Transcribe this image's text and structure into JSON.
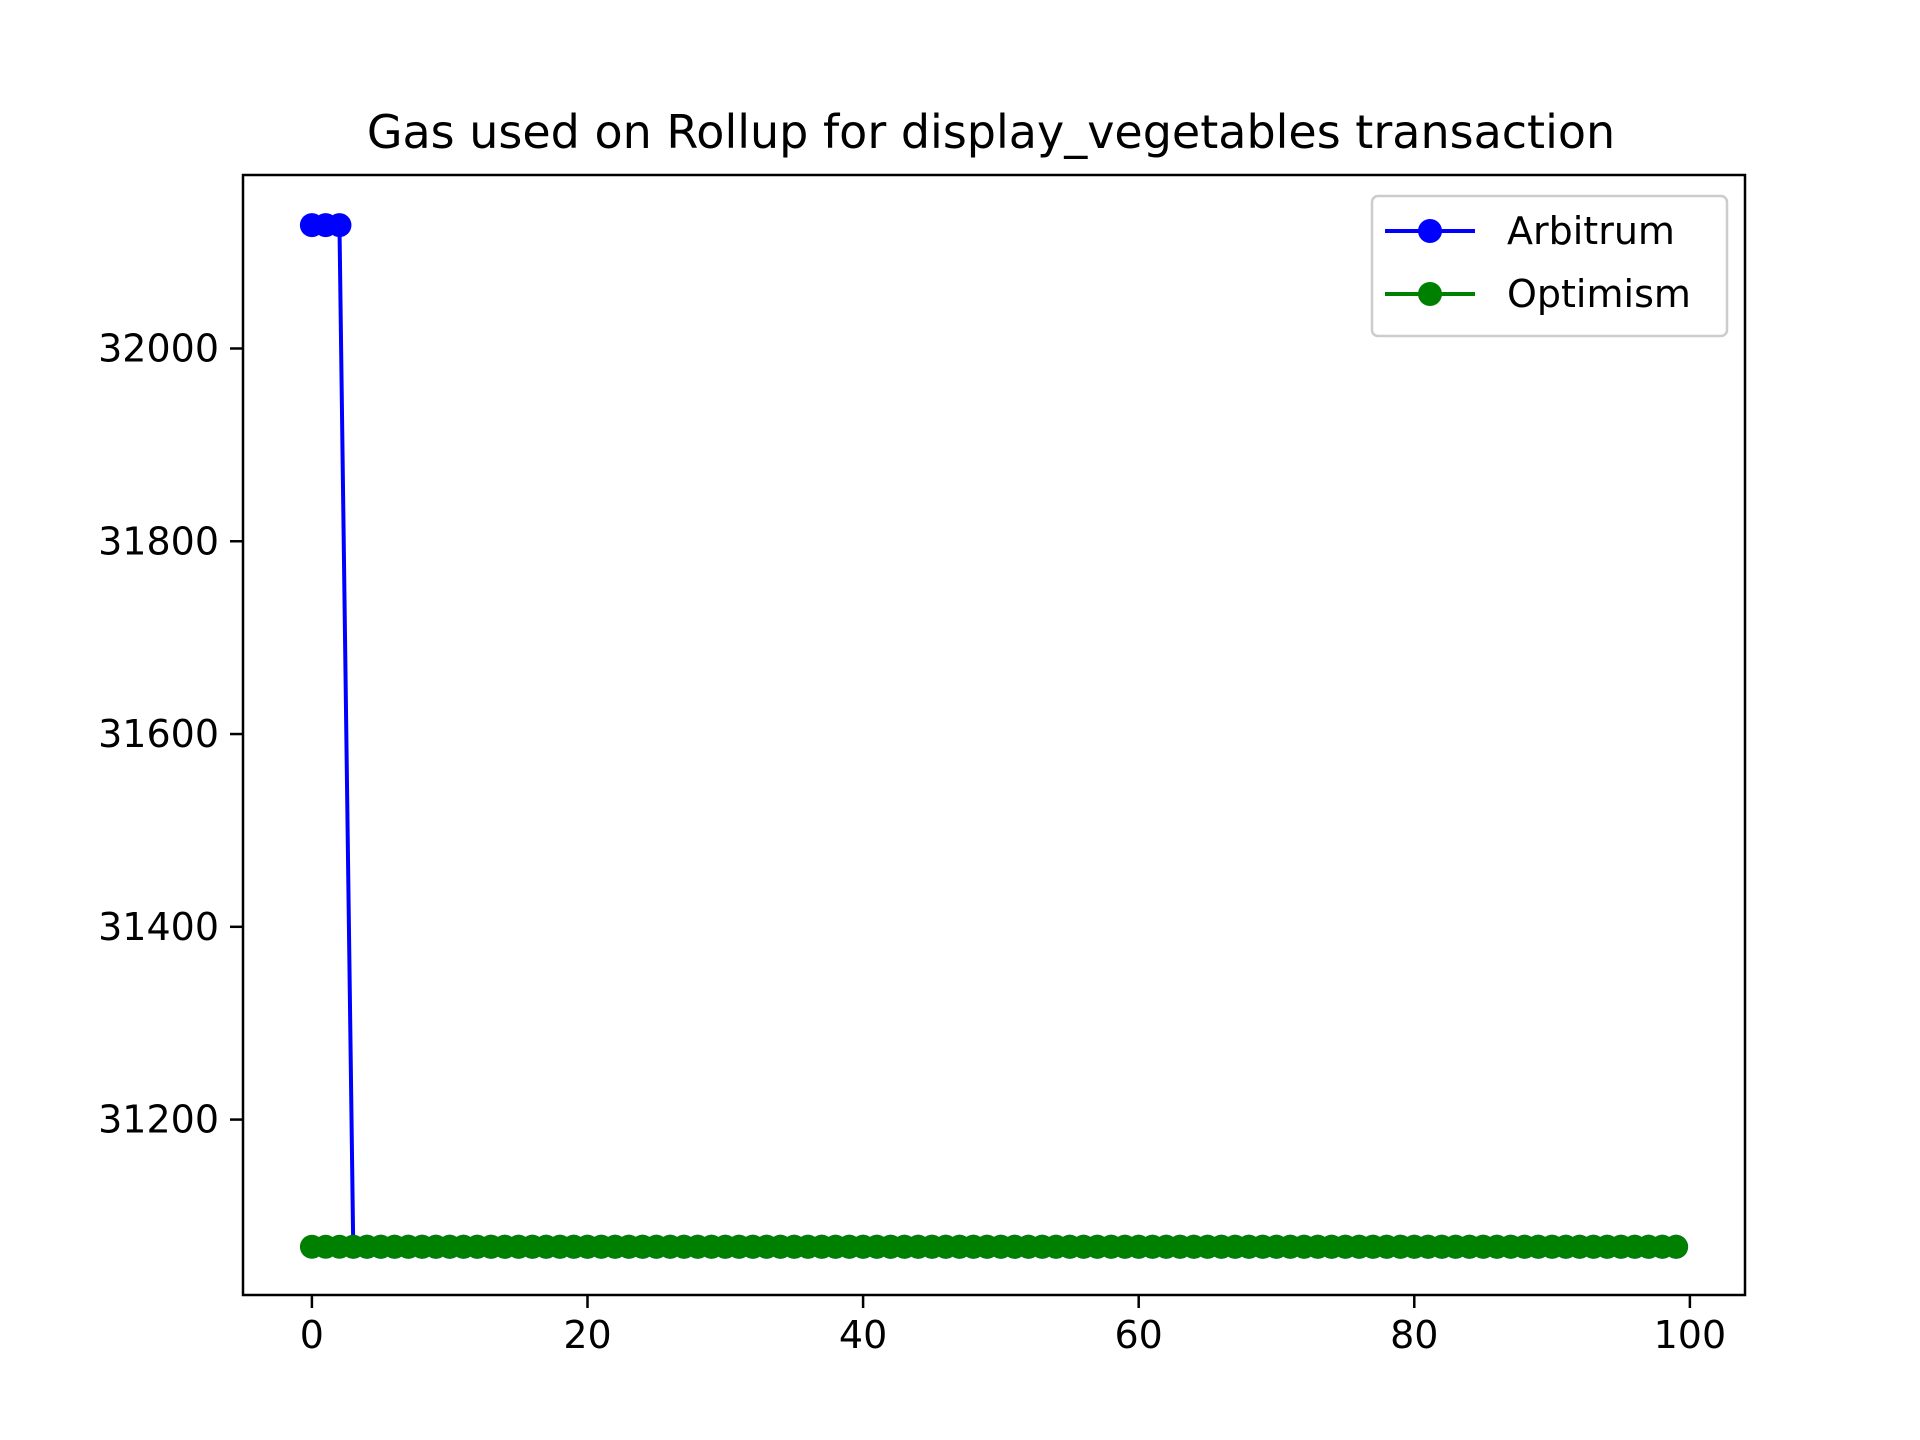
{
  "chart_data": {
    "type": "line",
    "title": "Gas used on Rollup for display_vegetables transaction",
    "xlabel": "",
    "ylabel": "",
    "xlim": [
      -5,
      104
    ],
    "ylim": [
      31018,
      32180
    ],
    "x_ticks": [
      0,
      20,
      40,
      60,
      80,
      100
    ],
    "y_ticks": [
      31200,
      31400,
      31600,
      31800,
      32000
    ],
    "grid": false,
    "legend_position": "top-right",
    "point_count": 100,
    "series": [
      {
        "name": "Arbitrum",
        "color": "#0000ff",
        "marker": "circle",
        "values": [
          32128,
          32128,
          32128,
          31068,
          31068,
          31068,
          31068,
          31068,
          31068,
          31068,
          31068,
          31068,
          31068,
          31068,
          31068,
          31068,
          31068,
          31068,
          31068,
          31068,
          31068,
          31068,
          31068,
          31068,
          31068,
          31068,
          31068,
          31068,
          31068,
          31068,
          31068,
          31068,
          31068,
          31068,
          31068,
          31068,
          31068,
          31068,
          31068,
          31068,
          31068,
          31068,
          31068,
          31068,
          31068,
          31068,
          31068,
          31068,
          31068,
          31068,
          31068,
          31068,
          31068,
          31068,
          31068,
          31068,
          31068,
          31068,
          31068,
          31068,
          31068,
          31068,
          31068,
          31068,
          31068,
          31068,
          31068,
          31068,
          31068,
          31068,
          31068,
          31068,
          31068,
          31068,
          31068,
          31068,
          31068,
          31068,
          31068,
          31068,
          31068,
          31068,
          31068,
          31068,
          31068,
          31068,
          31068,
          31068,
          31068,
          31068,
          31068,
          31068,
          31068,
          31068,
          31068,
          31068,
          31068,
          31068,
          31068,
          31068
        ]
      },
      {
        "name": "Optimism",
        "color": "#008000",
        "marker": "circle",
        "values": [
          31068,
          31068,
          31068,
          31068,
          31068,
          31068,
          31068,
          31068,
          31068,
          31068,
          31068,
          31068,
          31068,
          31068,
          31068,
          31068,
          31068,
          31068,
          31068,
          31068,
          31068,
          31068,
          31068,
          31068,
          31068,
          31068,
          31068,
          31068,
          31068,
          31068,
          31068,
          31068,
          31068,
          31068,
          31068,
          31068,
          31068,
          31068,
          31068,
          31068,
          31068,
          31068,
          31068,
          31068,
          31068,
          31068,
          31068,
          31068,
          31068,
          31068,
          31068,
          31068,
          31068,
          31068,
          31068,
          31068,
          31068,
          31068,
          31068,
          31068,
          31068,
          31068,
          31068,
          31068,
          31068,
          31068,
          31068,
          31068,
          31068,
          31068,
          31068,
          31068,
          31068,
          31068,
          31068,
          31068,
          31068,
          31068,
          31068,
          31068,
          31068,
          31068,
          31068,
          31068,
          31068,
          31068,
          31068,
          31068,
          31068,
          31068,
          31068,
          31068,
          31068,
          31068,
          31068,
          31068,
          31068,
          31068,
          31068,
          31068
        ]
      }
    ]
  }
}
